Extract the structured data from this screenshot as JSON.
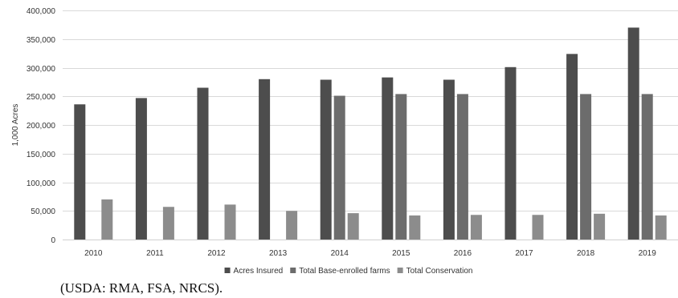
{
  "chart_data": {
    "type": "bar",
    "categories": [
      "2010",
      "2011",
      "2012",
      "2013",
      "2014",
      "2015",
      "2016",
      "2017",
      "2018",
      "2019"
    ],
    "series": [
      {
        "name": "Acres Insured",
        "color": "#4d4d4d",
        "values": [
          236000,
          247000,
          265000,
          280000,
          279000,
          283000,
          279000,
          301000,
          324000,
          370000
        ]
      },
      {
        "name": "Total Base-enrolled farms",
        "color": "#6c6c6c",
        "values": [
          null,
          null,
          null,
          null,
          251000,
          254000,
          254000,
          null,
          254000,
          254000
        ]
      },
      {
        "name": "Total Conservation",
        "color": "#8c8c8c",
        "values": [
          70000,
          57000,
          61000,
          50000,
          46000,
          42000,
          43000,
          43000,
          45000,
          42000
        ]
      }
    ],
    "ylabel": "1,000 Acres",
    "xlabel": "",
    "ylim": [
      0,
      400000
    ],
    "yticks": [
      "0",
      "50,000",
      "100,000",
      "150,000",
      "200,000",
      "250,000",
      "300,000",
      "350,000",
      "400,000"
    ],
    "ytick_values": [
      0,
      50000,
      100000,
      150000,
      200000,
      250000,
      300000,
      350000,
      400000
    ],
    "grid": true,
    "legend_position": "bottom"
  },
  "source_note": "(USDA: RMA, FSA, NRCS)."
}
